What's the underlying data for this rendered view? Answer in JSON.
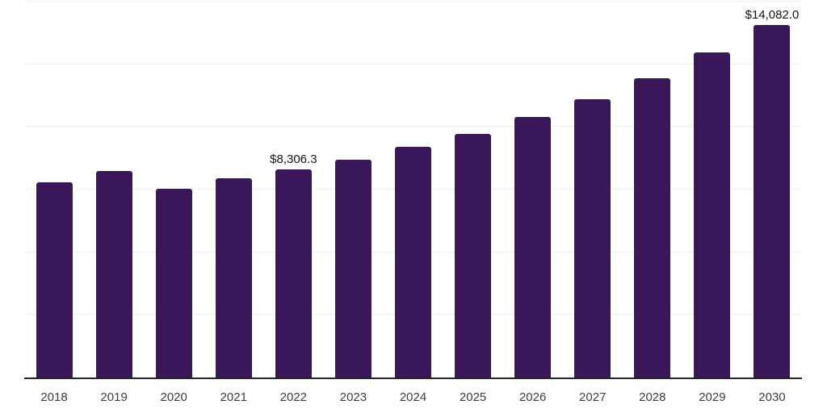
{
  "chart_data": {
    "type": "bar",
    "title": "",
    "xlabel": "",
    "ylabel": "",
    "categories": [
      "2018",
      "2019",
      "2020",
      "2021",
      "2022",
      "2023",
      "2024",
      "2025",
      "2026",
      "2027",
      "2028",
      "2029",
      "2030"
    ],
    "values": [
      7780,
      8230,
      7525,
      7940,
      8306.3,
      8680,
      9215,
      9730,
      10410,
      11110,
      11930,
      12970,
      14082
    ],
    "data_labels": [
      "",
      "",
      "",
      "",
      "$8,306.3",
      "",
      "",
      "",
      "",
      "",
      "",
      "",
      "$14,082.0"
    ],
    "labeled_values_note": "only 2022 and 2030 carry visible value labels; other values estimated from gridlines",
    "ylim": [
      0,
      15000
    ],
    "gridline_step": 2500,
    "grid": "horizontal",
    "legend": "none",
    "colors": {
      "bar": "#3a1759",
      "grid": "#ededed",
      "axis": "#262626",
      "tick_label": "#3d3d3d",
      "data_label": "#141414",
      "background": "#ffffff"
    }
  }
}
